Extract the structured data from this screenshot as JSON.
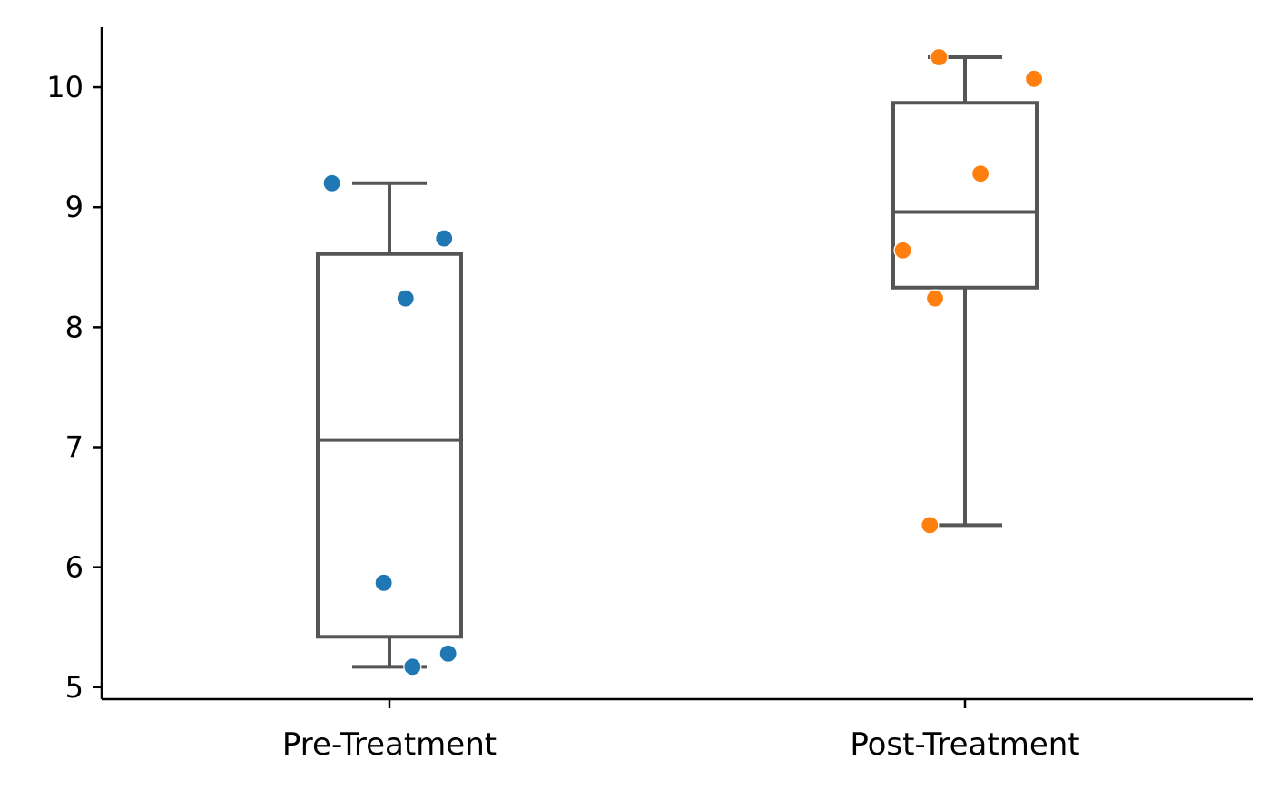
{
  "chart_data": {
    "type": "box",
    "title": "",
    "xlabel": "",
    "ylabel": "",
    "ylim": [
      4.9,
      10.5
    ],
    "yticks": [
      5,
      6,
      7,
      8,
      9,
      10
    ],
    "grid": false,
    "categories": [
      "Pre-Treatment",
      "Post-Treatment"
    ],
    "boxes": [
      {
        "category": "Pre-Treatment",
        "whisker_low": 5.17,
        "q1": 5.42,
        "median": 7.06,
        "q3": 8.61,
        "whisker_high": 9.2
      },
      {
        "category": "Post-Treatment",
        "whisker_low": 6.35,
        "q1": 8.33,
        "median": 8.96,
        "q3": 9.87,
        "whisker_high": 10.25
      }
    ],
    "points": [
      {
        "category": "Pre-Treatment",
        "y": 9.2,
        "jitter": -0.1
      },
      {
        "category": "Pre-Treatment",
        "y": 8.74,
        "jitter": 0.095
      },
      {
        "category": "Pre-Treatment",
        "y": 8.24,
        "jitter": 0.028
      },
      {
        "category": "Pre-Treatment",
        "y": 5.87,
        "jitter": -0.01
      },
      {
        "category": "Pre-Treatment",
        "y": 5.28,
        "jitter": 0.102
      },
      {
        "category": "Pre-Treatment",
        "y": 5.17,
        "jitter": 0.04
      },
      {
        "category": "Post-Treatment",
        "y": 10.25,
        "jitter": -0.045
      },
      {
        "category": "Post-Treatment",
        "y": 10.07,
        "jitter": 0.12
      },
      {
        "category": "Post-Treatment",
        "y": 9.28,
        "jitter": 0.027
      },
      {
        "category": "Post-Treatment",
        "y": 8.64,
        "jitter": -0.108
      },
      {
        "category": "Post-Treatment",
        "y": 8.24,
        "jitter": -0.052
      },
      {
        "category": "Post-Treatment",
        "y": 6.35,
        "jitter": -0.061
      }
    ],
    "colors": {
      "Pre-Treatment": "#1f77b4",
      "Post-Treatment": "#ff7f0e",
      "box": "#555555",
      "axis": "#000000"
    }
  }
}
